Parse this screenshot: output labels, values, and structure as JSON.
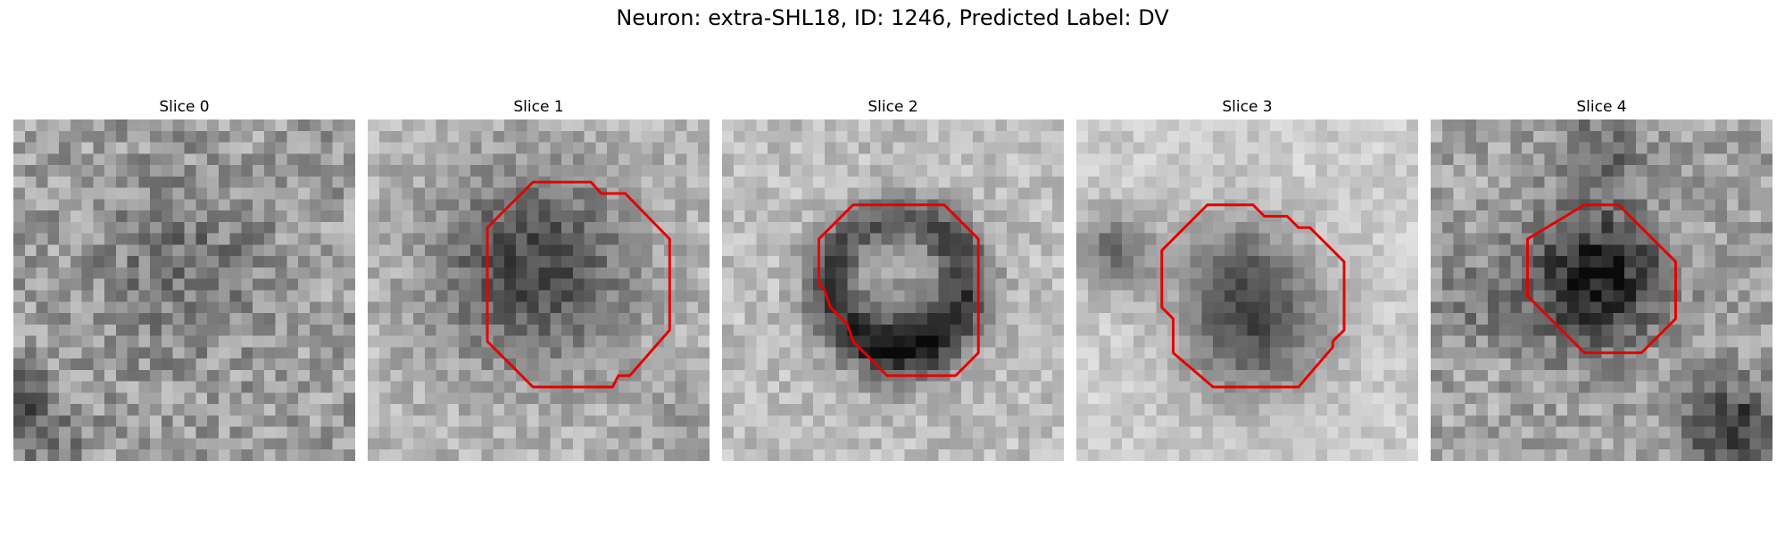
{
  "figure": {
    "title": "Neuron: extra-SHL18, ID: 1246, Predicted Label: DV",
    "contour_color": "#e60000"
  },
  "panels": [
    {
      "title": "Slice 0",
      "image": "grayscale-noise-patch",
      "contour": []
    },
    {
      "title": "Slice 1",
      "image": "grayscale-noise-patch",
      "contour": [
        [
          14.5,
          5.5
        ],
        [
          19.6,
          5.5
        ],
        [
          20.5,
          6.5
        ],
        [
          22.6,
          6.5
        ],
        [
          26.5,
          10.5
        ],
        [
          26.5,
          18.5
        ],
        [
          23,
          22.5
        ],
        [
          22,
          22.5
        ],
        [
          21.5,
          23.5
        ],
        [
          14.5,
          23.5
        ],
        [
          10.5,
          19.5
        ],
        [
          10.5,
          9.5
        ]
      ]
    },
    {
      "title": "Slice 2",
      "image": "grayscale-noise-patch",
      "contour": [
        [
          11.5,
          7.5
        ],
        [
          19.5,
          7.5
        ],
        [
          22.5,
          10.5
        ],
        [
          22.5,
          20.5
        ],
        [
          20.5,
          22.5
        ],
        [
          14.5,
          22.5
        ],
        [
          11.5,
          19.5
        ],
        [
          11,
          18
        ],
        [
          10.5,
          17.5
        ],
        [
          9.5,
          16.5
        ],
        [
          9,
          15
        ],
        [
          8.5,
          14.5
        ],
        [
          8.5,
          10.5
        ]
      ]
    },
    {
      "title": "Slice 3",
      "image": "grayscale-noise-patch",
      "contour": [
        [
          11.5,
          7.5
        ],
        [
          15.5,
          7.5
        ],
        [
          16.5,
          8.5
        ],
        [
          18.5,
          8.5
        ],
        [
          19.5,
          9.5
        ],
        [
          20.5,
          9.5
        ],
        [
          23.5,
          12.5
        ],
        [
          23.5,
          18.5
        ],
        [
          22.5,
          19.5
        ],
        [
          22.5,
          20
        ],
        [
          19.5,
          23.5
        ],
        [
          12,
          23.5
        ],
        [
          8.5,
          20.5
        ],
        [
          8.5,
          17.5
        ],
        [
          7.5,
          16.5
        ],
        [
          7.5,
          11.5
        ]
      ]
    },
    {
      "title": "Slice 4",
      "image": "grayscale-noise-patch",
      "contour": [
        [
          13.5,
          7.5
        ],
        [
          16.5,
          7.5
        ],
        [
          21.5,
          12.5
        ],
        [
          21.5,
          17.5
        ],
        [
          18.5,
          20.5
        ],
        [
          13.5,
          20.5
        ],
        [
          8.5,
          15.5
        ],
        [
          8.5,
          10.5
        ]
      ]
    }
  ]
}
